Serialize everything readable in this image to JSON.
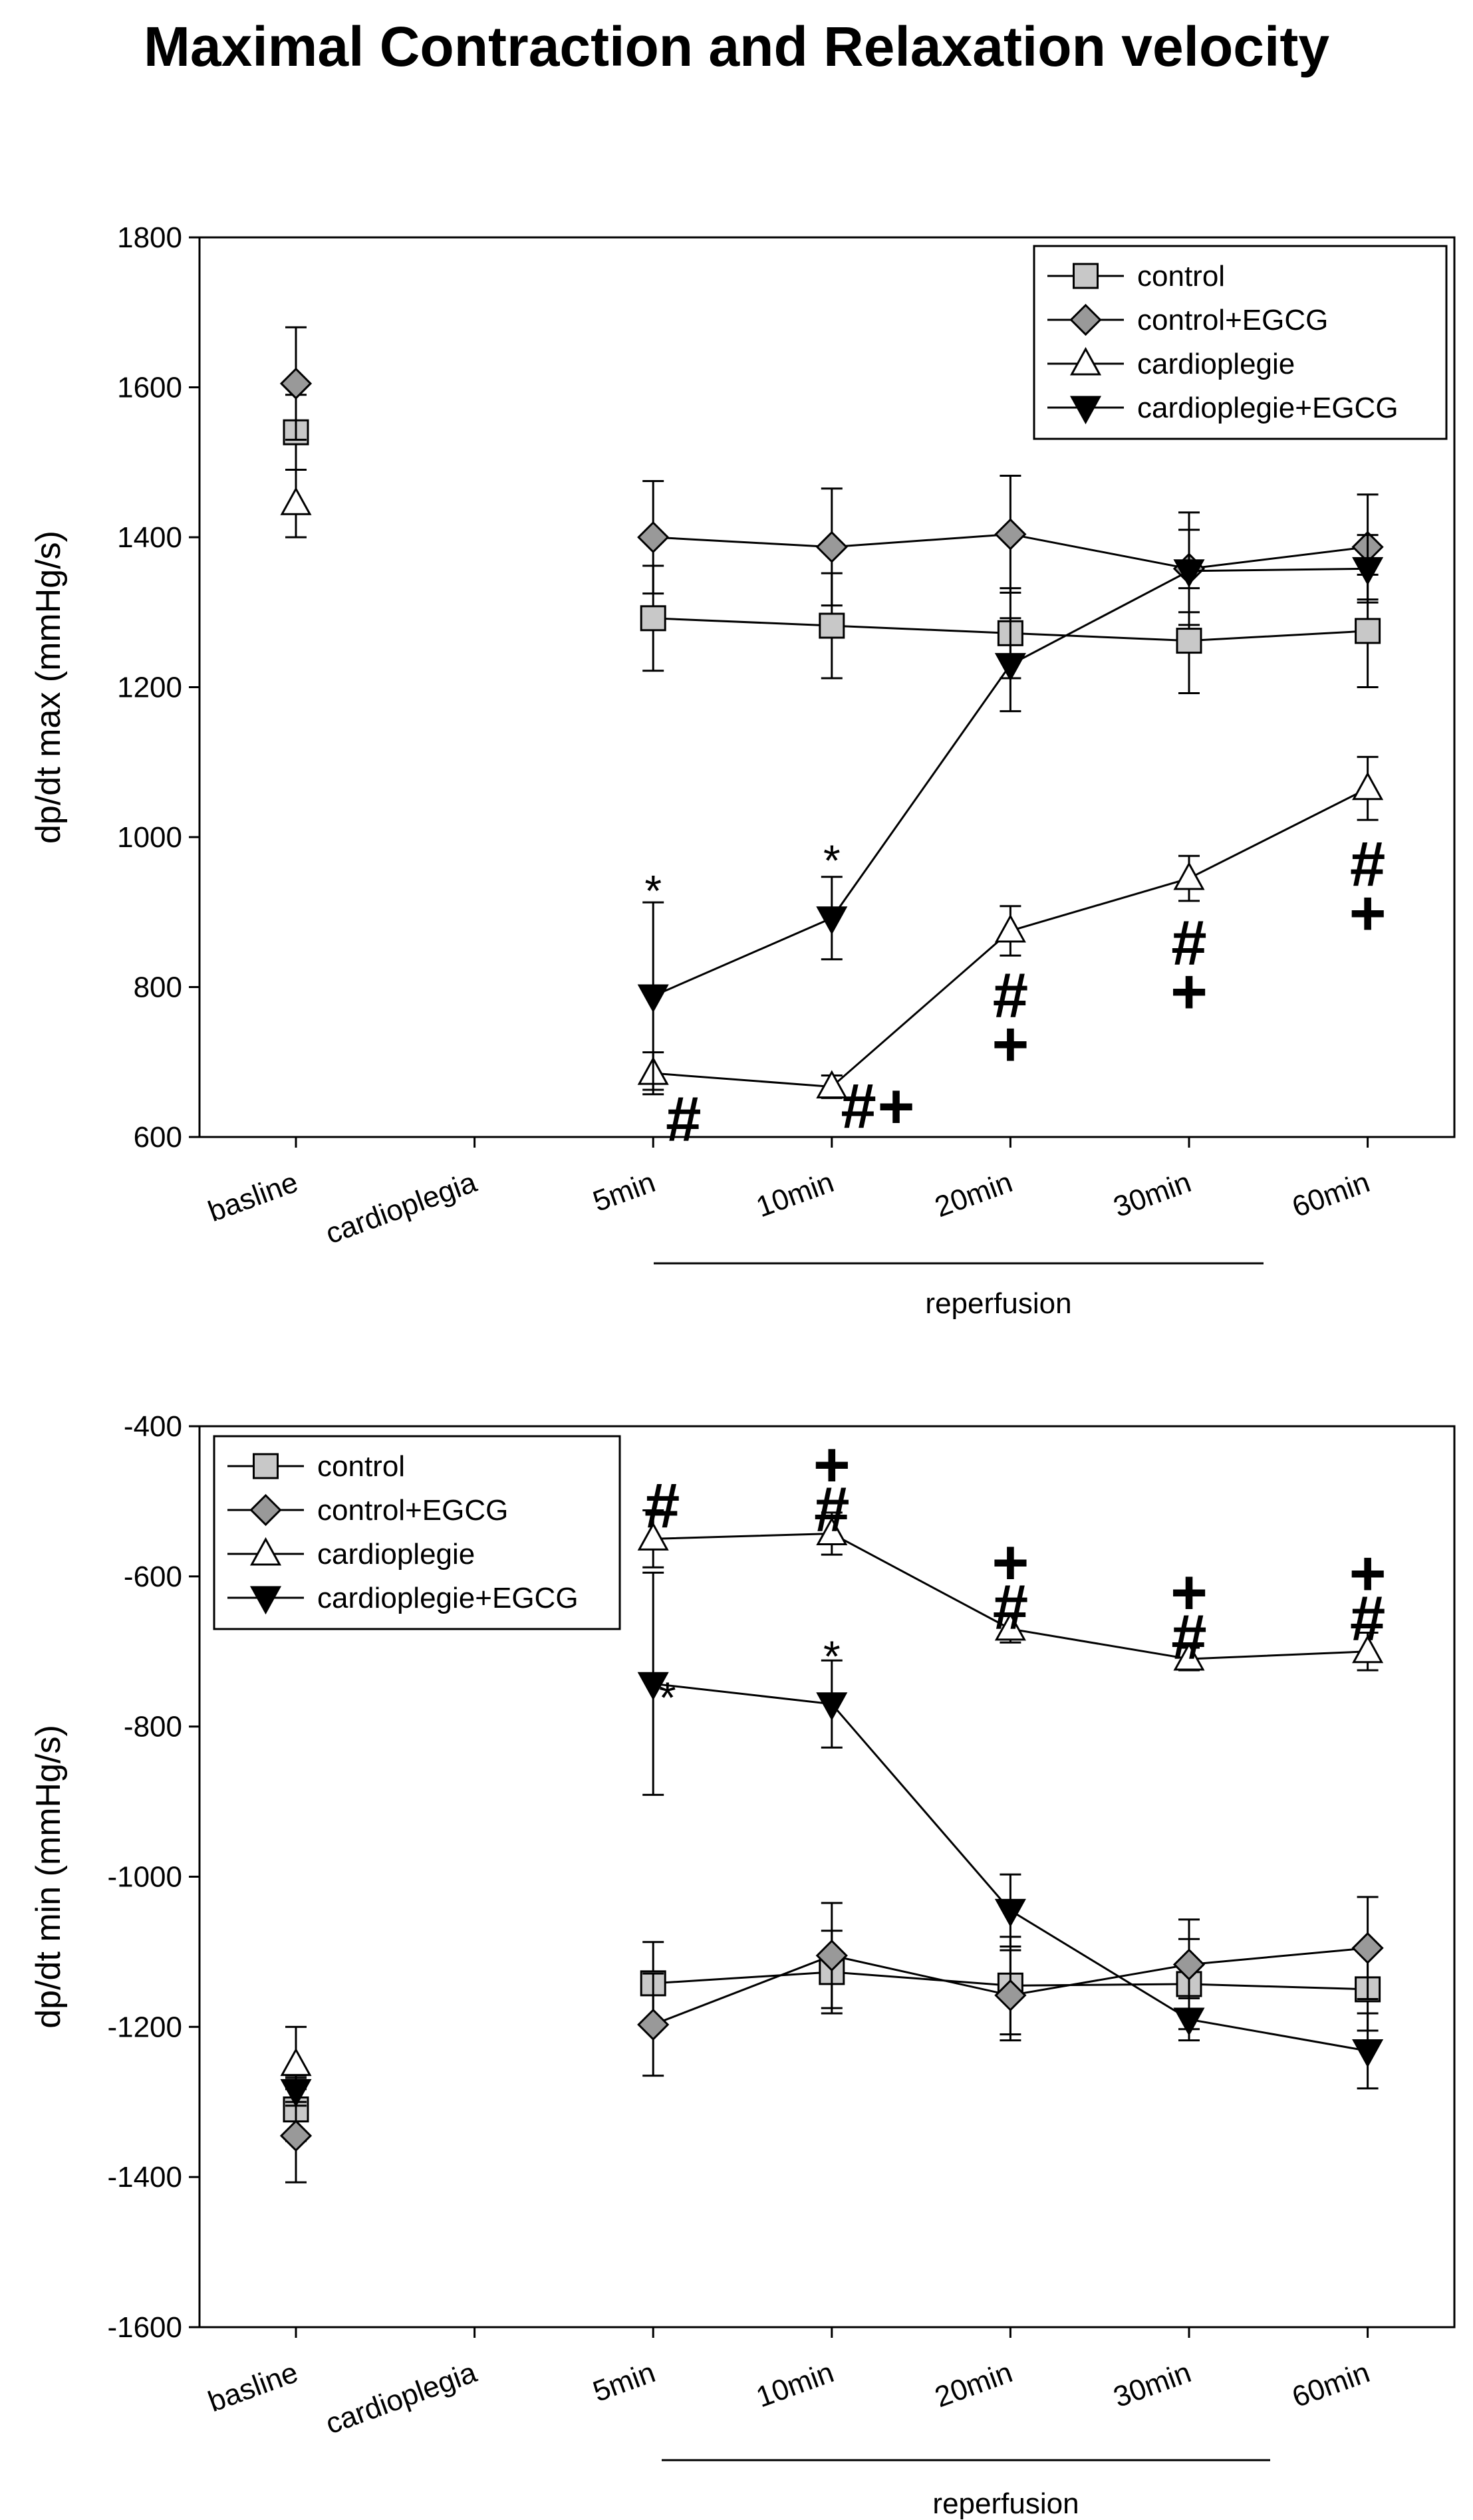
{
  "figure_title": "Maximal Contraction and Relaxation velocity",
  "chart_data": [
    {
      "type": "line",
      "id": "top",
      "title": "",
      "ylabel": "dp/dt max (mmHg/s)",
      "xlabel": "reperfusion",
      "ylim": [
        600,
        1800
      ],
      "yticks": [
        600,
        800,
        1000,
        1200,
        1400,
        1600,
        1800
      ],
      "categories": [
        "basline",
        "cardioplegia",
        "5min",
        "10min",
        "20min",
        "30min",
        "60min"
      ],
      "legend_position": "top-right",
      "series": [
        {
          "name": "control",
          "marker": "square",
          "color": "#c8c8c8",
          "values": [
            1540,
            null,
            1292,
            1282,
            1272,
            1262,
            1275
          ],
          "errors": [
            50,
            null,
            70,
            70,
            60,
            70,
            75
          ]
        },
        {
          "name": "control+EGCG",
          "marker": "diamond",
          "color": "#999999",
          "values": [
            1605,
            null,
            1400,
            1387,
            1404,
            1358,
            1387
          ],
          "errors": [
            75,
            null,
            75,
            78,
            78,
            75,
            70
          ]
        },
        {
          "name": "cardioplegie",
          "marker": "triangle-up",
          "color": "#ffffff",
          "values": [
            1445,
            null,
            685,
            667,
            875,
            945,
            1065
          ],
          "errors": [
            45,
            null,
            28,
            15,
            33,
            30,
            42
          ]
        },
        {
          "name": "cardioplegie+EGCG",
          "marker": "triangle-down",
          "color": "#000000",
          "values": [
            null,
            null,
            788,
            892,
            1230,
            1355,
            1358
          ],
          "errors": [
            null,
            null,
            125,
            55,
            62,
            55,
            45
          ]
        }
      ],
      "annotations": [
        {
          "text": "*",
          "category": "5min",
          "y": 935,
          "kind": "star"
        },
        {
          "text": "*",
          "category": "10min",
          "y": 975,
          "kind": "star"
        },
        {
          "text": "#",
          "category": "5min",
          "y": 625,
          "kind": "sym",
          "dx": 0.17
        },
        {
          "text": "#",
          "category": "10min",
          "y": 642,
          "kind": "sym",
          "dx": 0.15
        },
        {
          "text": "+",
          "category": "10min",
          "y": 642,
          "kind": "sym",
          "dx": 0.36
        },
        {
          "text": "#",
          "category": "20min",
          "y": 790,
          "kind": "sym",
          "dx": 0
        },
        {
          "text": "+",
          "category": "20min",
          "y": 725,
          "kind": "sym",
          "dx": 0
        },
        {
          "text": "#",
          "category": "30min",
          "y": 860,
          "kind": "sym",
          "dx": 0
        },
        {
          "text": "+",
          "category": "30min",
          "y": 795,
          "kind": "sym",
          "dx": 0
        },
        {
          "text": "#",
          "category": "60min",
          "y": 965,
          "kind": "sym",
          "dx": 0
        },
        {
          "text": "+",
          "category": "60min",
          "y": 900,
          "kind": "sym",
          "dx": 0
        }
      ]
    },
    {
      "type": "line",
      "id": "bottom",
      "title": "",
      "ylabel": "dp/dt min (mmHg/s)",
      "xlabel": "reperfusion",
      "ylim": [
        -1600,
        -400
      ],
      "yticks": [
        -1600,
        -1400,
        -1200,
        -1000,
        -800,
        -600,
        -400
      ],
      "categories": [
        "basline",
        "cardioplegia",
        "5min",
        "10min",
        "20min",
        "30min",
        "60min"
      ],
      "legend_position": "top-left",
      "series": [
        {
          "name": "control",
          "marker": "square",
          "color": "#c8c8c8",
          "values": [
            -1310,
            null,
            -1142,
            -1127,
            -1145,
            -1143,
            -1150
          ],
          "errors": [
            42,
            null,
            55,
            55,
            65,
            60,
            55
          ]
        },
        {
          "name": "control+EGCG",
          "marker": "diamond",
          "color": "#999999",
          "values": [
            -1345,
            null,
            -1197,
            -1105,
            -1158,
            -1117,
            -1095
          ],
          "errors": [
            62,
            null,
            68,
            70,
            60,
            60,
            68
          ]
        },
        {
          "name": "cardioplegie",
          "marker": "triangle-up",
          "color": "#ffffff",
          "values": [
            -1250,
            null,
            -550,
            -543,
            -670,
            -710,
            -700
          ],
          "errors": [
            50,
            null,
            38,
            28,
            18,
            15,
            25
          ]
        },
        {
          "name": "cardioplegie+EGCG",
          "marker": "triangle-down",
          "color": "#000000",
          "values": [
            -1285,
            null,
            -743,
            -770,
            -1045,
            -1190,
            -1232
          ],
          "errors": [
            20,
            null,
            148,
            58,
            48,
            28,
            50
          ]
        }
      ],
      "annotations": [
        {
          "text": "#",
          "category": "5min",
          "y": -505,
          "kind": "sym",
          "dx": 0.05
        },
        {
          "text": "*",
          "category": "5min",
          "y": -755,
          "kind": "star",
          "dx": 0.08
        },
        {
          "text": "+",
          "category": "10min",
          "y": -450,
          "kind": "sym",
          "dx": 0
        },
        {
          "text": "#",
          "category": "10min",
          "y": -510,
          "kind": "sym",
          "dx": 0
        },
        {
          "text": "*",
          "category": "10min",
          "y": -700,
          "kind": "star",
          "dx": 0
        },
        {
          "text": "+",
          "category": "20min",
          "y": -580,
          "kind": "sym",
          "dx": 0
        },
        {
          "text": "#",
          "category": "20min",
          "y": -640,
          "kind": "sym",
          "dx": 0
        },
        {
          "text": "+",
          "category": "30min",
          "y": -620,
          "kind": "sym",
          "dx": 0
        },
        {
          "text": "#",
          "category": "30min",
          "y": -680,
          "kind": "sym",
          "dx": 0
        },
        {
          "text": "+",
          "category": "60min",
          "y": -595,
          "kind": "sym",
          "dx": 0
        },
        {
          "text": "#",
          "category": "60min",
          "y": -655,
          "kind": "sym",
          "dx": 0
        }
      ]
    }
  ]
}
